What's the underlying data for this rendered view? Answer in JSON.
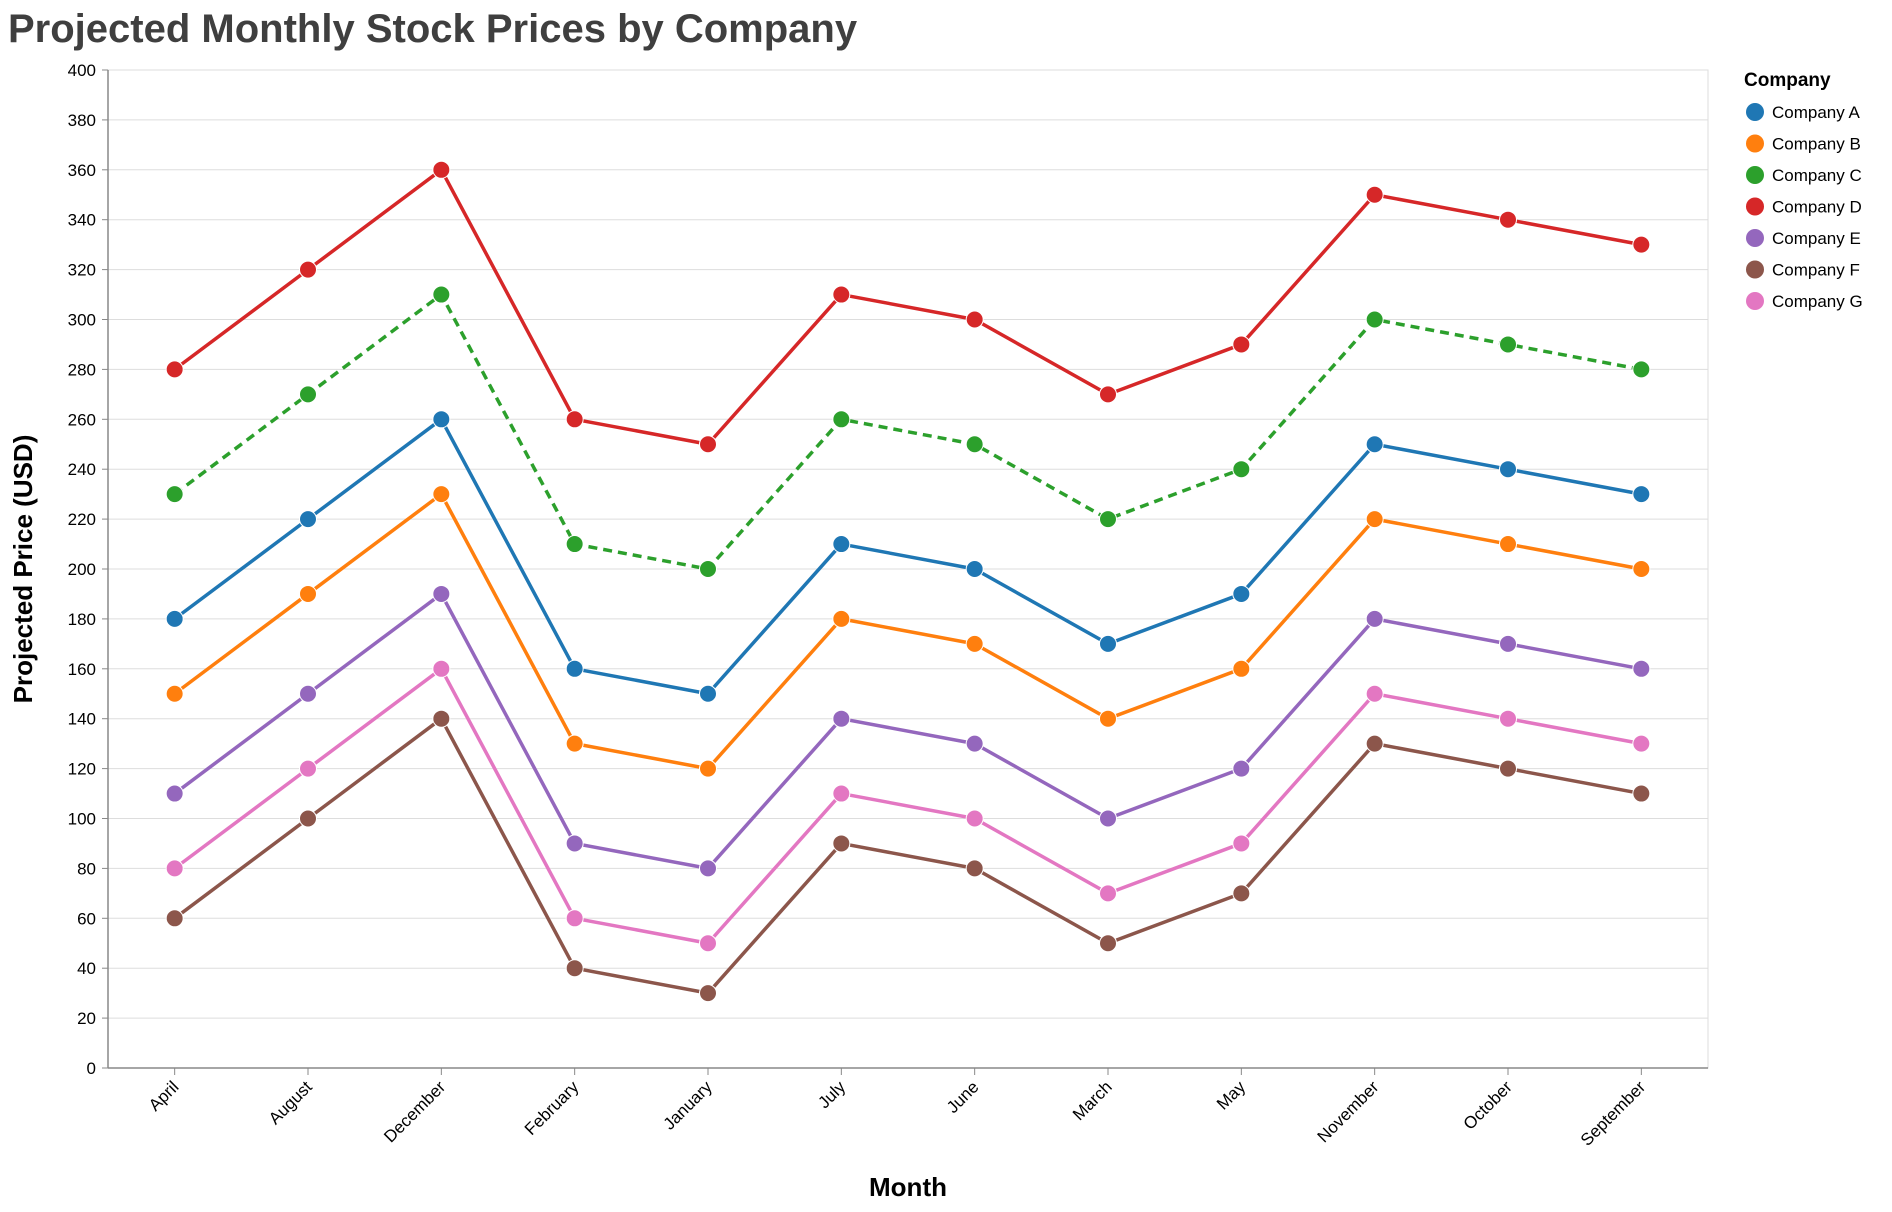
{
  "chart_data": {
    "type": "line",
    "title": "Projected Monthly Stock Prices by Company",
    "xlabel": "Month",
    "ylabel": "Projected Price (USD)",
    "ylim": [
      0,
      400
    ],
    "yticks": [
      0,
      20,
      40,
      60,
      80,
      100,
      120,
      140,
      160,
      180,
      200,
      220,
      240,
      260,
      280,
      300,
      320,
      340,
      360,
      380,
      400
    ],
    "grid": true,
    "legend": {
      "title": "Company",
      "placement": "right"
    },
    "categories": [
      "April",
      "August",
      "December",
      "February",
      "January",
      "July",
      "June",
      "March",
      "May",
      "November",
      "October",
      "September"
    ],
    "series": [
      {
        "name": "Company A",
        "color": "#1f77b4",
        "dashed": false,
        "values": [
          180,
          220,
          260,
          160,
          150,
          210,
          200,
          170,
          190,
          250,
          240,
          230
        ]
      },
      {
        "name": "Company B",
        "color": "#ff7f0e",
        "dashed": false,
        "values": [
          150,
          190,
          230,
          130,
          120,
          180,
          170,
          140,
          160,
          220,
          210,
          200
        ]
      },
      {
        "name": "Company C",
        "color": "#2ca02c",
        "dashed": true,
        "values": [
          230,
          270,
          310,
          210,
          200,
          260,
          250,
          220,
          240,
          300,
          290,
          280
        ]
      },
      {
        "name": "Company D",
        "color": "#d62728",
        "dashed": false,
        "values": [
          280,
          320,
          360,
          260,
          250,
          310,
          300,
          270,
          290,
          350,
          340,
          330
        ]
      },
      {
        "name": "Company E",
        "color": "#9467bd",
        "dashed": false,
        "values": [
          110,
          150,
          190,
          90,
          80,
          140,
          130,
          100,
          120,
          180,
          170,
          160
        ]
      },
      {
        "name": "Company F",
        "color": "#8c564b",
        "dashed": false,
        "values": [
          60,
          100,
          140,
          40,
          30,
          90,
          80,
          50,
          70,
          130,
          120,
          110
        ]
      },
      {
        "name": "Company G",
        "color": "#e377c2",
        "dashed": false,
        "values": [
          80,
          120,
          160,
          60,
          50,
          110,
          100,
          70,
          90,
          150,
          140,
          130
        ]
      }
    ]
  }
}
